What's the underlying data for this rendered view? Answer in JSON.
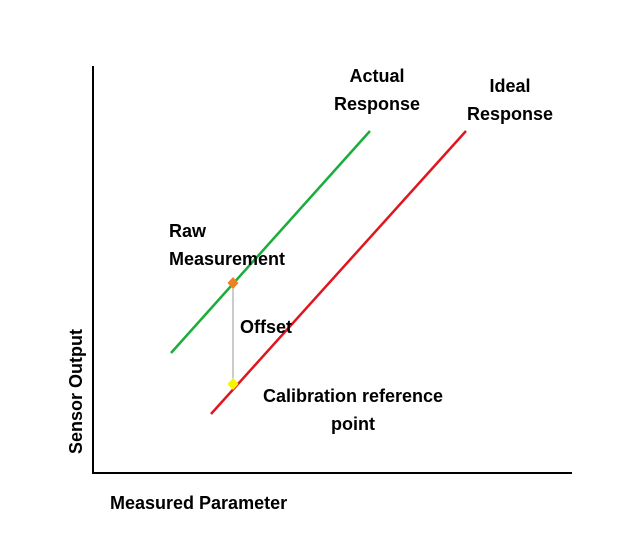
{
  "axes": {
    "x_label": "Measured Parameter",
    "y_label": "Sensor Output"
  },
  "lines": {
    "actual": {
      "label_line1": "Actual",
      "label_line2": "Response",
      "color": "#1aad3c"
    },
    "ideal": {
      "label_line1": "Ideal",
      "label_line2": "Response",
      "color": "#e0161e"
    }
  },
  "points": {
    "raw": {
      "label_line1": "Raw",
      "label_line2": "Measurement",
      "color": "#f07f22"
    },
    "calibration": {
      "label_line1": "Calibration reference",
      "label_line2": "point",
      "color": "#f5f500"
    }
  },
  "offset": {
    "label": "Offset",
    "color": "#999999"
  }
}
